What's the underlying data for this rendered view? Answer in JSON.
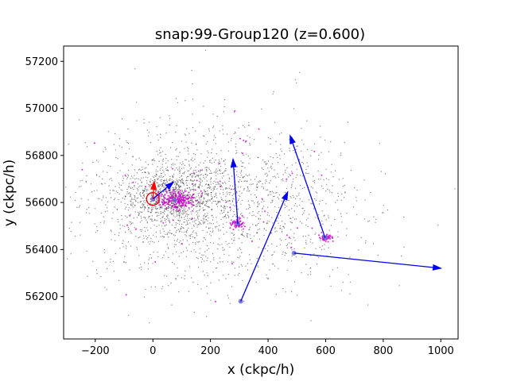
{
  "chart_data": {
    "type": "scatter",
    "title": "snap:99-Group120 (z=0.600)",
    "xlabel": "x (ckpc/h)",
    "ylabel": "y (ckpc/h)",
    "xlim": [
      -310,
      1060
    ],
    "ylim": [
      56020,
      57265
    ],
    "xticks": [
      -200,
      0,
      200,
      400,
      600,
      800,
      1000
    ],
    "yticks": [
      56200,
      56400,
      56600,
      56800,
      57000,
      57200
    ],
    "xtick_labels": [
      "−200",
      "0",
      "200",
      "400",
      "600",
      "800",
      "1000"
    ],
    "ytick_labels": [
      "56200",
      "56400",
      "56600",
      "56800",
      "57000",
      "57200"
    ],
    "grid": false,
    "series": [
      {
        "color": "#000000",
        "marker": "dot",
        "description_count": 2600,
        "center": [
          230,
          56600
        ],
        "spread": [
          230,
          170
        ]
      },
      {
        "color": "#cc00cc",
        "marker": "dot",
        "description_count": 350,
        "center": [
          80,
          56610
        ]
      }
    ],
    "subhalos": [
      {
        "x": 295,
        "y": 56510
      },
      {
        "x": 598,
        "y": 56450
      },
      {
        "x": 490,
        "y": 56385
      },
      {
        "x": 305,
        "y": 56180
      },
      {
        "x": 75,
        "y": 56610
      },
      {
        "x": 0,
        "y": 56615
      }
    ],
    "arrows": [
      {
        "from": [
          295,
          56510
        ],
        "to": [
          278,
          56790
        ],
        "color": "#0000ee"
      },
      {
        "from": [
          598,
          56450
        ],
        "to": [
          475,
          56890
        ],
        "color": "#0000ee"
      },
      {
        "from": [
          490,
          56385
        ],
        "to": [
          1005,
          56320
        ],
        "color": "#0000ee"
      },
      {
        "from": [
          305,
          56180
        ],
        "to": [
          470,
          56650
        ],
        "color": "#0000ee"
      },
      {
        "from": [
          0,
          56615
        ],
        "to": [
          75,
          56690
        ],
        "color": "#0000ee"
      },
      {
        "from": [
          0,
          56615
        ],
        "to": [
          5,
          56695
        ],
        "color": "#ff0000"
      }
    ],
    "center_marker": {
      "x": 0,
      "y": 56615,
      "color": "#ff0000",
      "shape": "circle"
    },
    "colors": {
      "background": "#ffffff",
      "particles": "#000000",
      "members": "#cc00cc",
      "arrows": "#0000ee",
      "center": "#ff0000"
    }
  }
}
